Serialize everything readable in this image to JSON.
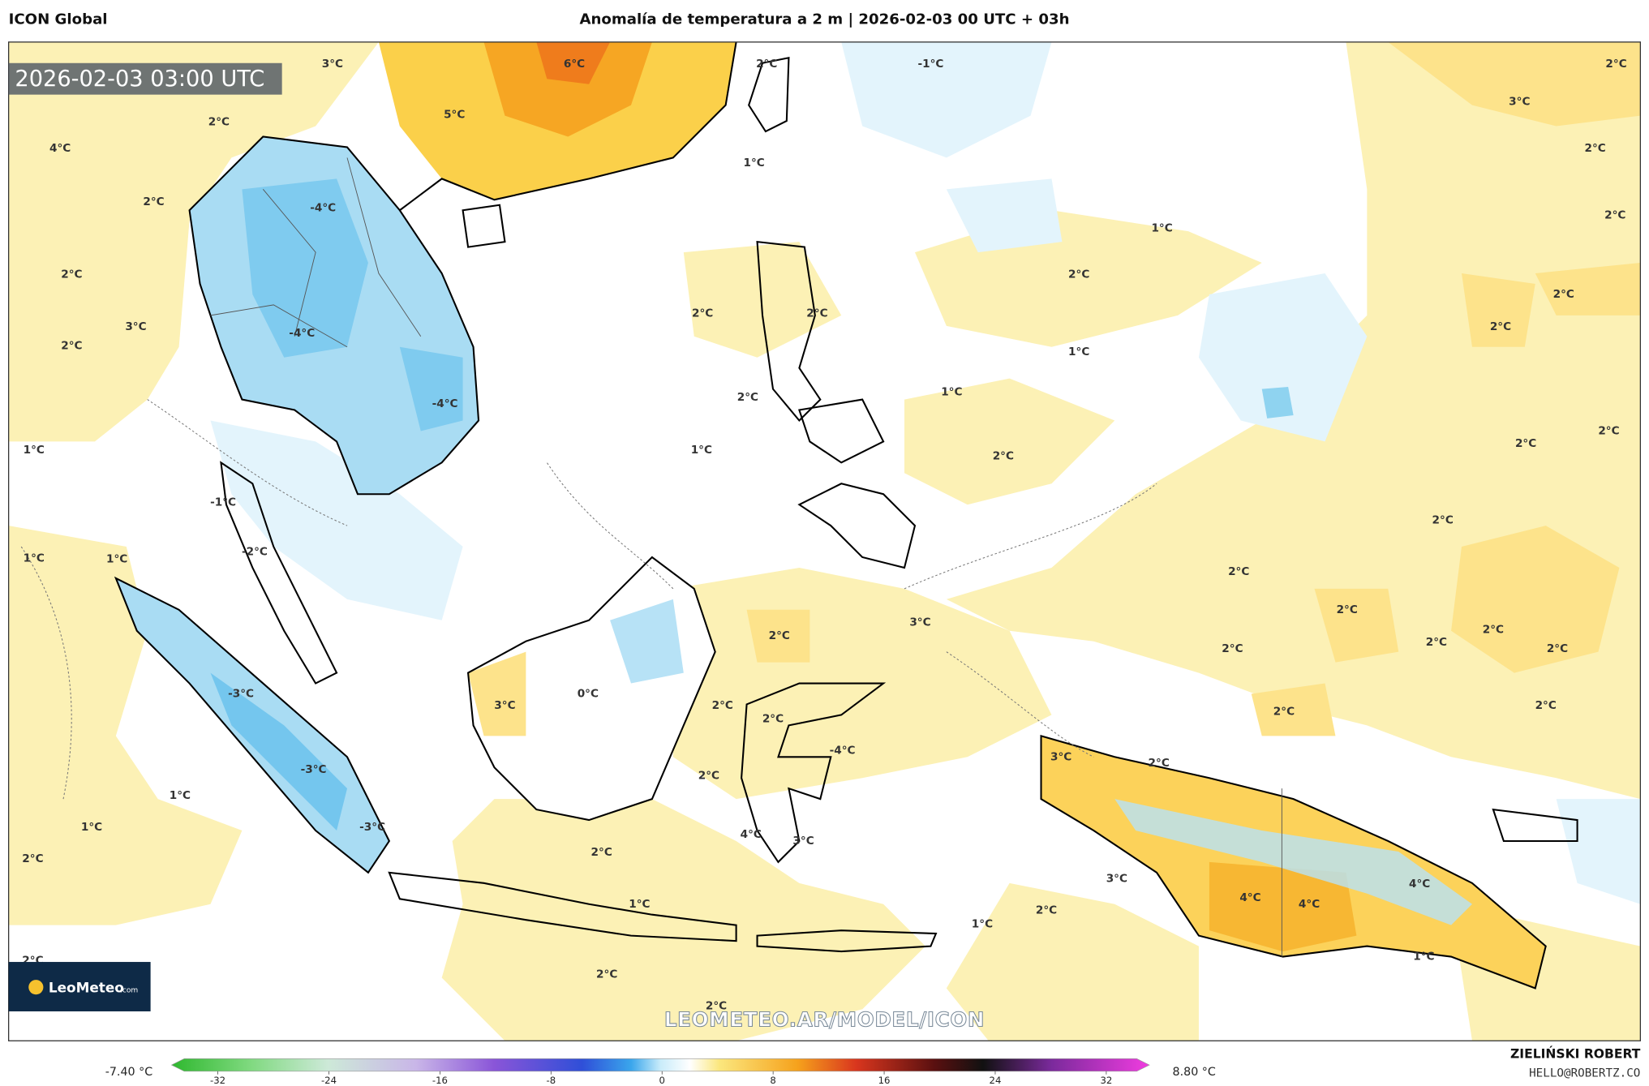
{
  "header": {
    "model": "ICON Global",
    "title": "Anomalía de temperatura a 2 m | 2026-02-03 00 UTC + 03h"
  },
  "map": {
    "valid_time": "2026-02-03 03:00 UTC",
    "contour_labels": [
      "3°C",
      "6°C",
      "2°C",
      "-1°C",
      "2°C",
      "3°C",
      "5°C",
      "2°C",
      "2°C",
      "4°C",
      "1°C",
      "2°C",
      "-4°C",
      "2°C",
      "1°C",
      "2°C",
      "2°C",
      "2°C",
      "2°C",
      "2°C",
      "3°C",
      "2°C",
      "-4°C",
      "2°C",
      "1°C",
      "1°C",
      "2°C",
      "-4°C",
      "2°C",
      "2°C",
      "1°C",
      "1°C",
      "2°C",
      "-1°C",
      "2°C",
      "-2°C",
      "1°C",
      "1°C",
      "2°C",
      "2°C",
      "3°C",
      "2°C",
      "2°C",
      "2°C",
      "2°C",
      "2°C",
      "0°C",
      "-3°C",
      "3°C",
      "2°C",
      "2°C",
      "2°C",
      "2°C",
      "-4°C",
      "3°C",
      "2°C",
      "-3°C",
      "2°C",
      "1°C",
      "1°C",
      "-3°C",
      "4°C",
      "3°C",
      "2°C",
      "2°C",
      "4°C",
      "3°C",
      "4°C",
      "1°C",
      "4°C",
      "2°C",
      "1°C",
      "1°C",
      "2°C",
      "2°C",
      "2°C"
    ],
    "watermark": "LEOMETEO.AR/MODEL/ICON",
    "logo_name": "LeoMeteo",
    "logo_suffix": ".com"
  },
  "colorbar": {
    "min_label": "-7.40 °C",
    "max_label": "8.80 °C",
    "ticks": [
      -32,
      -24,
      -16,
      -8,
      0,
      8,
      16,
      24,
      32
    ]
  },
  "footer": {
    "author": "ZIELIŃSKI ROBERT",
    "email": "HELLO@ROBERTZ.CO"
  }
}
